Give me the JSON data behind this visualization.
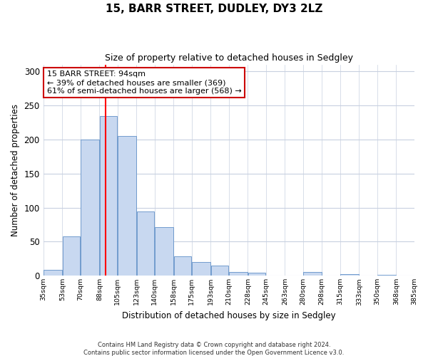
{
  "title1": "15, BARR STREET, DUDLEY, DY3 2LZ",
  "title2": "Size of property relative to detached houses in Sedgley",
  "xlabel": "Distribution of detached houses by size in Sedgley",
  "ylabel": "Number of detached properties",
  "footer1": "Contains HM Land Registry data © Crown copyright and database right 2024.",
  "footer2": "Contains public sector information licensed under the Open Government Licence v3.0.",
  "bar_left_edges": [
    35,
    53,
    70,
    88,
    105,
    123,
    140,
    158,
    175,
    193,
    210,
    228,
    245,
    263,
    280,
    298,
    315,
    333,
    350,
    368
  ],
  "bar_widths": [
    18,
    17,
    18,
    17,
    18,
    17,
    18,
    17,
    18,
    17,
    18,
    17,
    18,
    17,
    18,
    17,
    18,
    17,
    18,
    17
  ],
  "bar_heights": [
    9,
    58,
    200,
    234,
    205,
    94,
    71,
    28,
    20,
    15,
    5,
    4,
    0,
    0,
    5,
    0,
    2,
    0,
    1,
    0
  ],
  "bar_color": "#c8d8f0",
  "bar_edge_color": "#6090c8",
  "grid_color": "#c8d0e0",
  "red_line_x": 94,
  "annotation_line1": "15 BARR STREET: 94sqm",
  "annotation_line2": "← 39% of detached houses are smaller (369)",
  "annotation_line3": "61% of semi-detached houses are larger (568) →",
  "annotation_box_color": "#ffffff",
  "annotation_box_edge": "#cc0000",
  "ylim": [
    0,
    310
  ],
  "yticks": [
    0,
    50,
    100,
    150,
    200,
    250,
    300
  ],
  "xlim": [
    35,
    385
  ],
  "xtick_labels": [
    "35sqm",
    "53sqm",
    "70sqm",
    "88sqm",
    "105sqm",
    "123sqm",
    "140sqm",
    "158sqm",
    "175sqm",
    "193sqm",
    "210sqm",
    "228sqm",
    "245sqm",
    "263sqm",
    "280sqm",
    "298sqm",
    "315sqm",
    "333sqm",
    "350sqm",
    "368sqm",
    "385sqm"
  ],
  "xtick_positions": [
    35,
    53,
    70,
    88,
    105,
    123,
    140,
    158,
    175,
    193,
    210,
    228,
    245,
    263,
    280,
    298,
    315,
    333,
    350,
    368,
    385
  ],
  "background_color": "#ffffff",
  "title1_fontsize": 11,
  "title2_fontsize": 9
}
